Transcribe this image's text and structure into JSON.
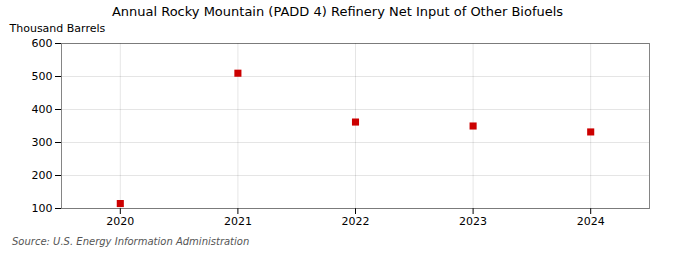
{
  "chart_data": {
    "type": "scatter",
    "title": "Annual Rocky Mountain (PADD 4) Refinery Net Input of Other Biofuels",
    "ylabel": "Thousand Barrels",
    "source": "Source: U.S. Energy Information Administration",
    "x": [
      2020,
      2021,
      2022,
      2023,
      2024
    ],
    "values": [
      115,
      510,
      362,
      350,
      332
    ],
    "xlim": [
      2019.5,
      2024.5
    ],
    "xticks": [
      2020,
      2021,
      2022,
      2023,
      2024
    ],
    "ylim": [
      100,
      600
    ],
    "yticks": [
      100,
      200,
      300,
      400,
      500,
      600
    ],
    "color": "#cc0000",
    "marker": "square",
    "grid": true
  }
}
